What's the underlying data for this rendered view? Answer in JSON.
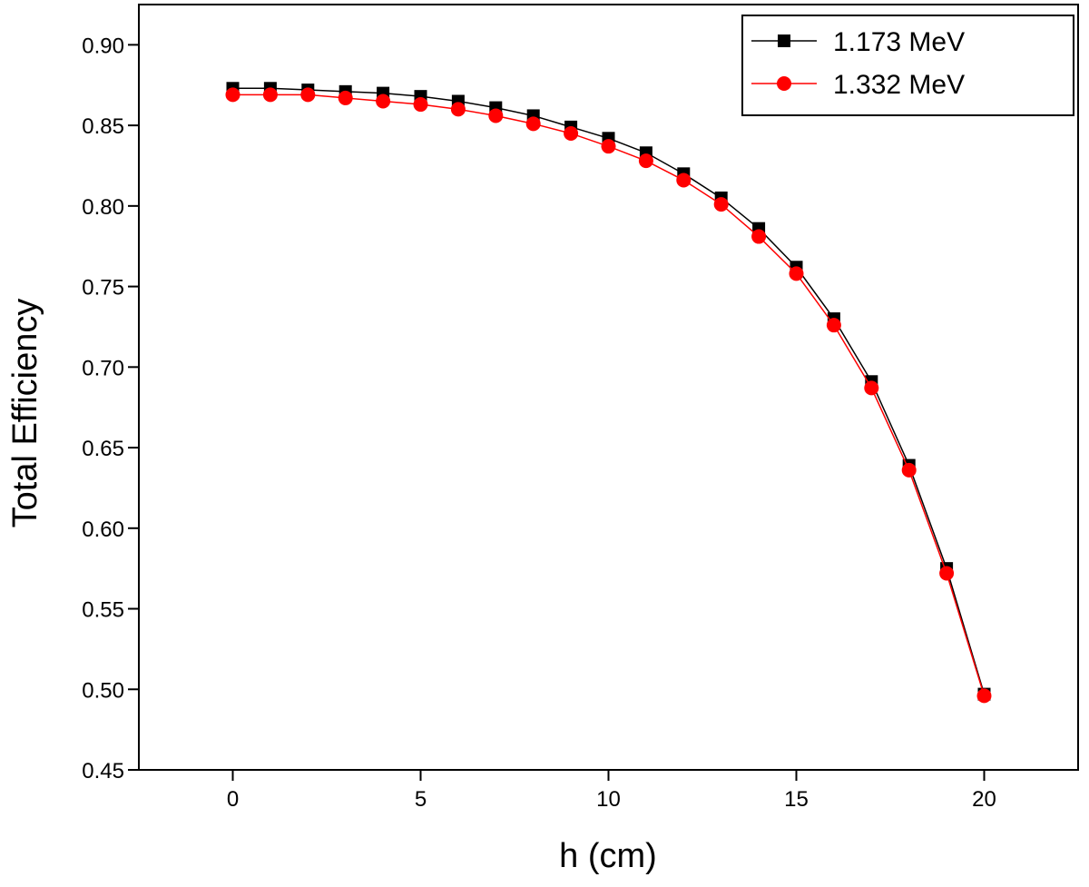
{
  "chart_data": {
    "type": "line",
    "title": "",
    "xlabel": "h (cm)",
    "ylabel": "Total Efficiency",
    "xlim": [
      -2.5,
      22.5
    ],
    "ylim": [
      0.45,
      0.925
    ],
    "xticks": [
      0,
      5,
      10,
      15,
      20
    ],
    "xtick_labels": [
      "0",
      "5",
      "10",
      "15",
      "20"
    ],
    "yticks": [
      0.45,
      0.5,
      0.55,
      0.6,
      0.65,
      0.7,
      0.75,
      0.8,
      0.85,
      0.9
    ],
    "ytick_labels": [
      "0.45",
      "0.50",
      "0.55",
      "0.60",
      "0.65",
      "0.70",
      "0.75",
      "0.80",
      "0.85",
      "0.90"
    ],
    "grid": false,
    "legend_position": "top-right",
    "x": [
      0,
      1,
      2,
      3,
      4,
      5,
      6,
      7,
      8,
      9,
      10,
      11,
      12,
      13,
      14,
      15,
      16,
      17,
      18,
      19,
      20
    ],
    "series": [
      {
        "name": "1.173 MeV",
        "color": "#000000",
        "marker": "square",
        "values": [
          0.873,
          0.873,
          0.872,
          0.871,
          0.87,
          0.868,
          0.865,
          0.861,
          0.856,
          0.849,
          0.842,
          0.833,
          0.82,
          0.805,
          0.786,
          0.762,
          0.73,
          0.691,
          0.639,
          0.575,
          0.497
        ]
      },
      {
        "name": "1.332 MeV",
        "color": "#ff0000",
        "marker": "circle",
        "values": [
          0.869,
          0.869,
          0.869,
          0.867,
          0.865,
          0.863,
          0.86,
          0.856,
          0.851,
          0.845,
          0.837,
          0.828,
          0.816,
          0.801,
          0.781,
          0.758,
          0.726,
          0.687,
          0.636,
          0.572,
          0.496
        ]
      }
    ]
  }
}
